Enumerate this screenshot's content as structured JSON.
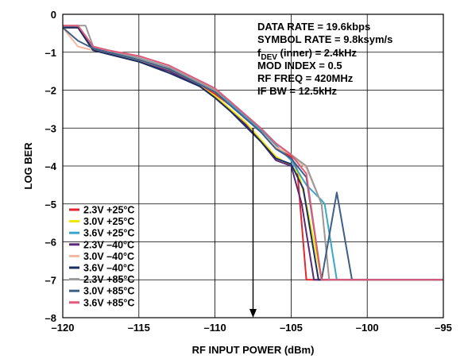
{
  "chart_data": {
    "type": "line",
    "xlabel": "RF INPUT POWER (dBm)",
    "ylabel": "LOG BER",
    "xlim": [
      -120,
      -95
    ],
    "ylim": [
      -8,
      0
    ],
    "xticks": [
      -120,
      -115,
      -110,
      -105,
      -100,
      -95
    ],
    "xtick_labels": [
      "–120",
      "–115",
      "–110",
      "–105",
      "–100",
      "–95"
    ],
    "yticks": [
      0,
      -1,
      -2,
      -3,
      -4,
      -5,
      -6,
      -7,
      -8
    ],
    "ytick_labels": [
      "0",
      "–1",
      "–2",
      "–3",
      "–4",
      "–5",
      "–6",
      "–7",
      "–8"
    ],
    "grid": true,
    "legend_position": "bottom-left",
    "annotations": [
      {
        "text": "DATA RATE = 19.6kbps"
      },
      {
        "text": "SYMBOL RATE = 9.8ksym/s"
      },
      {
        "main": "f",
        "sub": "DEV",
        "rest": " (inner) = 2.4kHz"
      },
      {
        "text": "MOD INDEX = 0.5"
      },
      {
        "text": "RF FREQ = 420MHz"
      },
      {
        "text": "IF BW = 12.5kHz"
      }
    ],
    "arrow": {
      "x": -107.5,
      "y_from": -3,
      "y_to": -8
    },
    "series": [
      {
        "name": "2.3V +25°C",
        "color": "#e3262f",
        "x": [
          -120,
          -119,
          -118,
          -117,
          -115,
          -113,
          -111,
          -110,
          -109,
          -108,
          -107,
          -106,
          -105,
          -104.6,
          -104,
          -103,
          -102,
          -101,
          -95
        ],
        "y": [
          -0.35,
          -0.35,
          -0.9,
          -1.0,
          -1.2,
          -1.45,
          -1.85,
          -2.1,
          -2.4,
          -2.75,
          -3.1,
          -3.5,
          -3.75,
          -4.1,
          -7,
          -7,
          -7,
          -7,
          -7
        ]
      },
      {
        "name": "3.0V +25°C",
        "color": "#f2e500",
        "x": [
          -120,
          -119,
          -118,
          -117,
          -115,
          -113,
          -111,
          -110,
          -109,
          -108,
          -107,
          -106,
          -105,
          -104.5,
          -104,
          -103,
          -102,
          -101,
          -95
        ],
        "y": [
          -0.35,
          -0.35,
          -0.95,
          -1.05,
          -1.25,
          -1.5,
          -1.9,
          -2.15,
          -2.5,
          -2.85,
          -3.3,
          -3.75,
          -4.0,
          -4.2,
          -5,
          -7,
          -7,
          -7,
          -7
        ]
      },
      {
        "name": "3.6V +25°C",
        "color": "#3aa7c9",
        "x": [
          -120,
          -119,
          -118,
          -117,
          -115,
          -113,
          -111,
          -110,
          -109,
          -108,
          -107,
          -106,
          -105,
          -104,
          -103,
          -102.8,
          -102,
          -101,
          -95
        ],
        "y": [
          -0.3,
          -0.35,
          -0.9,
          -1.0,
          -1.15,
          -1.4,
          -1.8,
          -2.0,
          -2.35,
          -2.7,
          -3.05,
          -3.45,
          -3.85,
          -4.5,
          -4.9,
          -5,
          -7,
          -7,
          -7
        ]
      },
      {
        "name": "2.3V –40°C",
        "color": "#5a2a78",
        "x": [
          -120,
          -119,
          -118,
          -117,
          -115,
          -113,
          -111,
          -110,
          -109,
          -108,
          -107,
          -106,
          -105,
          -104.3,
          -103.5,
          -103,
          -102,
          -101,
          -95
        ],
        "y": [
          -0.35,
          -0.35,
          -0.95,
          -1.05,
          -1.25,
          -1.5,
          -1.9,
          -2.2,
          -2.55,
          -2.9,
          -3.35,
          -3.85,
          -4.0,
          -5,
          -7,
          -7,
          -7,
          -7,
          -7
        ]
      },
      {
        "name": "3.0V –40°C",
        "color": "#f5b8a0",
        "x": [
          -120,
          -119,
          -118,
          -117,
          -115,
          -113,
          -111,
          -110,
          -109,
          -108,
          -107,
          -106,
          -105,
          -104,
          -103,
          -102.5,
          -102,
          -101,
          -95
        ],
        "y": [
          -0.35,
          -0.85,
          -0.95,
          -1.0,
          -1.2,
          -1.45,
          -1.85,
          -2.05,
          -2.4,
          -2.75,
          -3.1,
          -3.5,
          -3.7,
          -4.05,
          -5,
          -7,
          -7,
          -7,
          -7
        ]
      },
      {
        "name": "3.6V –40°C",
        "color": "#1c2f63",
        "x": [
          -120,
          -119,
          -118,
          -117,
          -115,
          -113,
          -111,
          -110,
          -109,
          -108,
          -107,
          -106,
          -105,
          -104.2,
          -103.2,
          -103,
          -102,
          -101,
          -95
        ],
        "y": [
          -0.35,
          -0.35,
          -0.95,
          -1.05,
          -1.25,
          -1.55,
          -1.9,
          -2.2,
          -2.55,
          -2.95,
          -3.35,
          -3.8,
          -3.95,
          -4.6,
          -7,
          -7,
          -7,
          -7,
          -7
        ]
      },
      {
        "name": "2.3V +85°C",
        "color": "#9a9a9a",
        "x": [
          -120,
          -118.5,
          -118,
          -117,
          -115,
          -113,
          -111,
          -110,
          -109,
          -108,
          -107,
          -106,
          -105,
          -104,
          -103,
          -102.5,
          -102,
          -101,
          -95
        ],
        "y": [
          -0.3,
          -0.3,
          -0.85,
          -0.95,
          -1.15,
          -1.4,
          -1.8,
          -2.0,
          -2.3,
          -2.65,
          -3.0,
          -3.4,
          -3.7,
          -4.0,
          -5,
          -7,
          -7,
          -7,
          -7
        ]
      },
      {
        "name": "3.0V +85°C",
        "color": "#3e5f86",
        "x": [
          -120,
          -119,
          -118,
          -117,
          -115,
          -113,
          -111,
          -110,
          -109,
          -108,
          -107,
          -106,
          -105,
          -104,
          -103,
          -102,
          -101,
          -100,
          -95
        ],
        "y": [
          -0.35,
          -0.7,
          -0.9,
          -1.0,
          -1.2,
          -1.45,
          -1.85,
          -2.05,
          -2.4,
          -2.75,
          -3.1,
          -3.55,
          -3.8,
          -4.3,
          -7,
          -4.7,
          -7,
          -7,
          -7
        ]
      },
      {
        "name": "3.6V +85°C",
        "color": "#e05a7a",
        "x": [
          -120,
          -119,
          -118,
          -117,
          -115,
          -113,
          -111,
          -110,
          -109,
          -108,
          -107,
          -106,
          -105,
          -104,
          -103,
          -102,
          -101,
          -95
        ],
        "y": [
          -0.3,
          -0.3,
          -0.85,
          -0.95,
          -1.1,
          -1.35,
          -1.75,
          -1.95,
          -2.3,
          -2.65,
          -3.0,
          -3.4,
          -3.7,
          -4.2,
          -7,
          -7,
          -7,
          -7
        ]
      }
    ]
  }
}
